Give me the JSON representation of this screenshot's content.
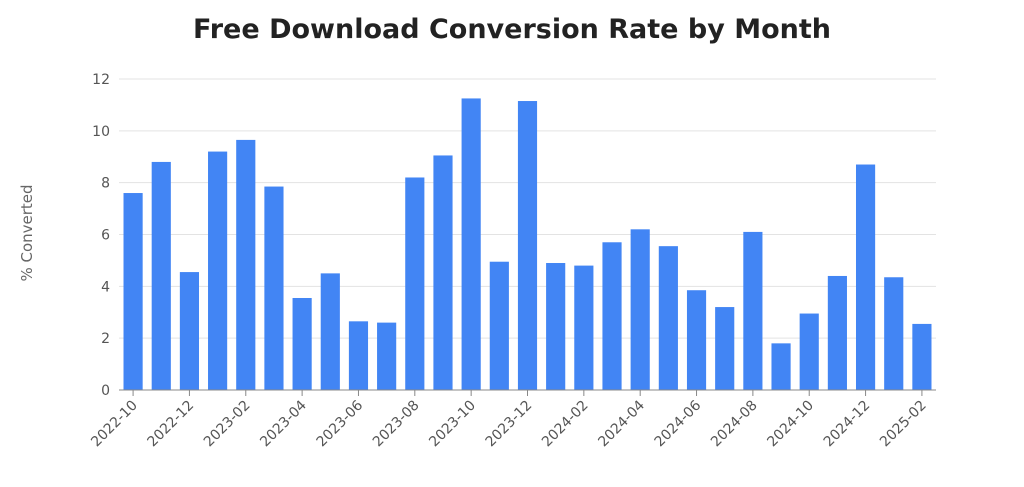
{
  "chart_data": {
    "type": "bar",
    "title": "Free Download Conversion Rate by Month",
    "xlabel": "",
    "ylabel": "% Converted",
    "ylim": [
      0,
      12
    ],
    "yticks": [
      "0",
      "2",
      "4",
      "6",
      "8",
      "10",
      "12"
    ],
    "grid": true,
    "bar_color": "#4285f4",
    "categories": [
      "2022-10",
      "2022-11",
      "2022-12",
      "2023-01",
      "2023-02",
      "2023-03",
      "2023-04",
      "2023-05",
      "2023-06",
      "2023-07",
      "2023-08",
      "2023-09",
      "2023-10",
      "2023-11",
      "2023-12",
      "2024-01",
      "2024-02",
      "2024-03",
      "2024-04",
      "2024-05",
      "2024-06",
      "2024-07",
      "2024-08",
      "2024-09",
      "2024-10",
      "2024-11",
      "2024-12",
      "2025-01",
      "2025-02"
    ],
    "xtick_labels": [
      "2022-10",
      "2022-12",
      "2023-02",
      "2023-04",
      "2023-06",
      "2023-08",
      "2023-10",
      "2023-12",
      "2024-02",
      "2024-04",
      "2024-06",
      "2024-08",
      "2024-10",
      "2024-12",
      "2025-02"
    ],
    "values": [
      7.6,
      8.8,
      4.55,
      9.2,
      9.65,
      7.85,
      3.55,
      4.5,
      2.65,
      2.6,
      8.2,
      9.05,
      11.25,
      4.95,
      11.15,
      4.9,
      4.8,
      5.7,
      6.2,
      5.55,
      3.85,
      3.2,
      6.1,
      1.8,
      2.95,
      4.4,
      8.7,
      4.35,
      2.55
    ]
  }
}
